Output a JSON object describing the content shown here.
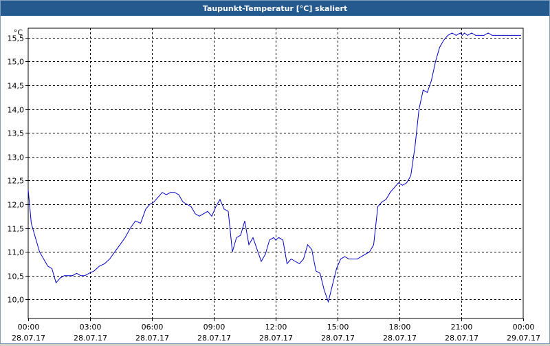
{
  "window": {
    "title": "Taupunkt-Temperatur [°C] skaliert"
  },
  "colors": {
    "titlebar": "#245a8e",
    "line": "#0000cc",
    "grid": "#000000"
  },
  "chart_data": {
    "type": "line",
    "title": "Taupunkt-Temperatur [°C] skaliert",
    "unit_label": "°C",
    "grid": true,
    "grid_style": "dashed",
    "xlim": [
      0,
      24
    ],
    "ylim": [
      9.6,
      15.7
    ],
    "y_ticks": [
      {
        "v": 10.0,
        "label": "10,0"
      },
      {
        "v": 10.5,
        "label": "10,5"
      },
      {
        "v": 11.0,
        "label": "11,0"
      },
      {
        "v": 11.5,
        "label": "11,5"
      },
      {
        "v": 12.0,
        "label": "12,0"
      },
      {
        "v": 12.5,
        "label": "12,5"
      },
      {
        "v": 13.0,
        "label": "13,0"
      },
      {
        "v": 13.5,
        "label": "13,5"
      },
      {
        "v": 14.0,
        "label": "14,0"
      },
      {
        "v": 14.5,
        "label": "14,5"
      },
      {
        "v": 15.0,
        "label": "15,0"
      },
      {
        "v": 15.5,
        "label": "15,5"
      }
    ],
    "x_ticks": [
      {
        "v": 0,
        "time": "00:00",
        "date": "28.07.17"
      },
      {
        "v": 3,
        "time": "03:00",
        "date": "28.07.17"
      },
      {
        "v": 6,
        "time": "06:00",
        "date": "28.07.17"
      },
      {
        "v": 9,
        "time": "09:00",
        "date": "28.07.17"
      },
      {
        "v": 12,
        "time": "12:00",
        "date": "28.07.17"
      },
      {
        "v": 15,
        "time": "15:00",
        "date": "28.07.17"
      },
      {
        "v": 18,
        "time": "18:00",
        "date": "28.07.17"
      },
      {
        "v": 21,
        "time": "21:00",
        "date": "28.07.17"
      },
      {
        "v": 24,
        "time": "00:00",
        "date": "29.07.17"
      }
    ],
    "series": [
      {
        "x": [
          0,
          0.15,
          0.35,
          0.55,
          0.75,
          0.95,
          1.15,
          1.35,
          1.55,
          1.75,
          1.95,
          2.15,
          2.35,
          2.55,
          2.75,
          2.95,
          3.2,
          3.45,
          3.7,
          3.95,
          4.2,
          4.45,
          4.7,
          4.95,
          5.2,
          5.45,
          5.7,
          5.9,
          6.1,
          6.3,
          6.5,
          6.7,
          6.9,
          7.1,
          7.3,
          7.5,
          7.7,
          7.9,
          8.1,
          8.3,
          8.5,
          8.7,
          8.9,
          9.1,
          9.3,
          9.5,
          9.7,
          9.9,
          10.1,
          10.3,
          10.5,
          10.7,
          10.9,
          11.1,
          11.3,
          11.5,
          11.7,
          11.9,
          12.0,
          12.15,
          12.35,
          12.55,
          12.75,
          12.95,
          13.15,
          13.35,
          13.55,
          13.75,
          13.95,
          14.15,
          14.35,
          14.55,
          14.75,
          14.95,
          15.15,
          15.35,
          15.55,
          15.75,
          15.95,
          16.15,
          16.35,
          16.55,
          16.75,
          16.95,
          17.15,
          17.35,
          17.55,
          17.75,
          17.95,
          18.15,
          18.35,
          18.55,
          18.75,
          18.95,
          19.15,
          19.35,
          19.55,
          19.75,
          19.95,
          20.15,
          20.35,
          20.55,
          20.75,
          20.95,
          21.05,
          21.15,
          21.3,
          21.5,
          21.7,
          21.9,
          22.1,
          22.3,
          22.5,
          22.7,
          22.9,
          23.1,
          23.3,
          23.5,
          23.7,
          23.9
        ],
        "y": [
          12.3,
          11.6,
          11.3,
          11.0,
          10.85,
          10.7,
          10.65,
          10.35,
          10.45,
          10.5,
          10.5,
          10.5,
          10.55,
          10.5,
          10.5,
          10.55,
          10.6,
          10.7,
          10.75,
          10.85,
          11.0,
          11.15,
          11.3,
          11.5,
          11.65,
          11.6,
          11.9,
          12.0,
          12.05,
          12.15,
          12.25,
          12.2,
          12.25,
          12.25,
          12.2,
          12.05,
          12.0,
          11.95,
          11.8,
          11.75,
          11.8,
          11.85,
          11.75,
          11.95,
          12.1,
          11.9,
          11.85,
          11.0,
          11.3,
          11.35,
          11.65,
          11.15,
          11.3,
          11.05,
          10.8,
          10.95,
          11.25,
          11.3,
          11.25,
          11.3,
          11.25,
          10.75,
          10.85,
          10.8,
          10.75,
          10.85,
          11.15,
          11.05,
          10.6,
          10.55,
          10.2,
          9.95,
          10.3,
          10.65,
          10.85,
          10.9,
          10.85,
          10.85,
          10.85,
          10.9,
          10.95,
          11.0,
          11.15,
          11.95,
          12.05,
          12.1,
          12.25,
          12.35,
          12.45,
          12.4,
          12.45,
          12.6,
          13.2,
          14.0,
          14.4,
          14.35,
          14.6,
          15.0,
          15.3,
          15.45,
          15.55,
          15.6,
          15.55,
          15.6,
          15.55,
          15.6,
          15.55,
          15.6,
          15.55,
          15.55,
          15.55,
          15.6,
          15.55,
          15.55,
          15.55,
          15.55,
          15.55,
          15.55,
          15.55,
          15.55
        ]
      }
    ]
  }
}
